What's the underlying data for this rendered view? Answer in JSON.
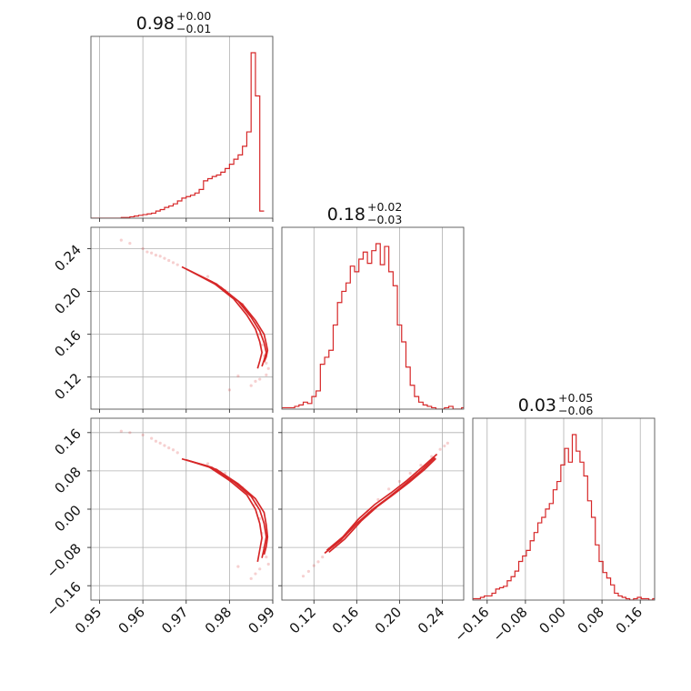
{
  "chart_data": {
    "type": "corner",
    "color": "#d62728",
    "grid": true,
    "parameters": [
      {
        "title": {
          "median": "0.98",
          "plus": "+0.00",
          "minus": "−0.01"
        },
        "range": [
          0.948,
          0.99
        ],
        "ticks": [
          0.95,
          0.96,
          0.97,
          0.98,
          0.99
        ],
        "tick_labels": [
          "0.95",
          "0.96",
          "0.97",
          "0.98",
          "0.99"
        ],
        "hist": {
          "edges_start": 0.948,
          "bin_width": 0.001,
          "counts": [
            0,
            0,
            0,
            0,
            0,
            0,
            0,
            1,
            1,
            2,
            3,
            4,
            5,
            6,
            7,
            10,
            12,
            15,
            17,
            20,
            24,
            28,
            30,
            32,
            35,
            40,
            52,
            55,
            58,
            60,
            64,
            69,
            75,
            82,
            88,
            100,
            120,
            230,
            170,
            10
          ]
        }
      },
      {
        "title": {
          "median": "0.18",
          "plus": "+0.02",
          "minus": "−0.03"
        },
        "range": [
          0.09,
          0.26
        ],
        "ticks": [
          0.12,
          0.16,
          0.2,
          0.24
        ],
        "tick_labels": [
          "0.12",
          "0.16",
          "0.20",
          "0.24"
        ],
        "hist": {
          "edges_start": 0.09,
          "bin_width": 0.004,
          "counts": [
            1,
            1,
            1,
            2,
            3,
            5,
            4,
            9,
            13,
            32,
            37,
            42,
            60,
            76,
            84,
            90,
            102,
            98,
            107,
            112,
            104,
            113,
            118,
            103,
            116,
            98,
            88,
            60,
            48,
            30,
            17,
            9,
            5,
            3,
            2,
            1,
            0,
            0,
            1,
            2,
            0,
            0,
            1
          ]
        }
      },
      {
        "title": {
          "median": "0.03",
          "plus": "+0.05",
          "minus": "−0.06"
        },
        "range": [
          -0.19,
          0.19
        ],
        "ticks": [
          -0.16,
          -0.08,
          0.0,
          0.08,
          0.16
        ],
        "tick_labels": [
          "−0.16",
          "−0.08",
          "0.00",
          "0.08",
          "0.16"
        ],
        "hist": {
          "edges_start": -0.19,
          "bin_width": 0.008,
          "counts": [
            1,
            1,
            2,
            3,
            3,
            5,
            8,
            9,
            10,
            14,
            17,
            21,
            28,
            32,
            36,
            43,
            49,
            56,
            60,
            66,
            70,
            80,
            86,
            98,
            110,
            100,
            120,
            108,
            100,
            90,
            72,
            60,
            40,
            28,
            20,
            16,
            11,
            5,
            3,
            2,
            1,
            0,
            1,
            2,
            1,
            1,
            0,
            1
          ]
        }
      }
    ],
    "pairs": [
      {
        "x_param": 0,
        "y_param": 1,
        "contours": [
          {
            "x": [
              0.969,
              0.976,
              0.981,
              0.984,
              0.986,
              0.987,
              0.9875,
              0.987,
              0.9865
            ],
            "y": [
              0.223,
              0.209,
              0.193,
              0.178,
              0.165,
              0.153,
              0.143,
              0.135,
              0.128
            ]
          },
          {
            "x": [
              0.97,
              0.977,
              0.982,
              0.985,
              0.987,
              0.988,
              0.9885,
              0.988,
              0.9875
            ],
            "y": [
              0.221,
              0.207,
              0.191,
              0.176,
              0.163,
              0.152,
              0.143,
              0.136,
              0.13
            ]
          },
          {
            "x": [
              0.971,
              0.978,
              0.983,
              0.986,
              0.988,
              0.9885,
              0.9888,
              0.9885,
              0.988
            ],
            "y": [
              0.219,
              0.204,
              0.188,
              0.173,
              0.16,
              0.151,
              0.145,
              0.139,
              0.134
            ]
          }
        ],
        "scatter": {
          "x": [
            0.955,
            0.957,
            0.96,
            0.961,
            0.962,
            0.963,
            0.964,
            0.965,
            0.966,
            0.967,
            0.968,
            0.975,
            0.979,
            0.983,
            0.986,
            0.987,
            0.9875,
            0.988,
            0.9885,
            0.989,
            0.9885,
            0.987,
            0.986,
            0.985,
            0.98,
            0.982
          ],
          "y": [
            0.248,
            0.245,
            0.24,
            0.237,
            0.236,
            0.234,
            0.233,
            0.231,
            0.229,
            0.227,
            0.225,
            0.214,
            0.201,
            0.188,
            0.171,
            0.16,
            0.15,
            0.14,
            0.133,
            0.128,
            0.122,
            0.118,
            0.116,
            0.112,
            0.108,
            0.121
          ]
        }
      },
      {
        "x_param": 0,
        "y_param": 2,
        "contours": [
          {
            "x": [
              0.969,
              0.975,
              0.98,
              0.984,
              0.986,
              0.987,
              0.9875,
              0.987,
              0.9865
            ],
            "y": [
              0.105,
              0.09,
              0.06,
              0.03,
              0.0,
              -0.03,
              -0.06,
              -0.085,
              -0.11
            ]
          },
          {
            "x": [
              0.97,
              0.976,
              0.981,
              0.985,
              0.987,
              0.988,
              0.9885,
              0.988,
              0.9875
            ],
            "y": [
              0.103,
              0.087,
              0.057,
              0.027,
              -0.002,
              -0.03,
              -0.058,
              -0.082,
              -0.102
            ]
          },
          {
            "x": [
              0.971,
              0.977,
              0.982,
              0.986,
              0.988,
              0.9885,
              0.9888,
              0.9885,
              0.988
            ],
            "y": [
              0.1,
              0.083,
              0.053,
              0.022,
              -0.007,
              -0.033,
              -0.058,
              -0.078,
              -0.095
            ]
          }
        ],
        "scatter": {
          "x": [
            0.955,
            0.957,
            0.96,
            0.962,
            0.963,
            0.964,
            0.965,
            0.966,
            0.967,
            0.968,
            0.975,
            0.979,
            0.983,
            0.986,
            0.987,
            0.9875,
            0.988,
            0.9885,
            0.989,
            0.987,
            0.986,
            0.985,
            0.982
          ],
          "y": [
            0.163,
            0.16,
            0.155,
            0.148,
            0.142,
            0.138,
            0.133,
            0.128,
            0.124,
            0.118,
            0.095,
            0.075,
            0.045,
            0.01,
            -0.02,
            -0.05,
            -0.08,
            -0.1,
            -0.115,
            -0.125,
            -0.135,
            -0.145,
            -0.12
          ]
        }
      },
      {
        "x_param": 1,
        "y_param": 2,
        "contours": [
          {
            "x": [
              0.13,
              0.145,
              0.16,
              0.175,
              0.19,
              0.205,
              0.22,
              0.233
            ],
            "y": [
              -0.092,
              -0.065,
              -0.03,
              0.0,
              0.025,
              0.052,
              0.08,
              0.108
            ]
          },
          {
            "x": [
              0.132,
              0.147,
              0.162,
              0.177,
              0.192,
              0.207,
              0.222,
              0.235
            ],
            "y": [
              -0.086,
              -0.058,
              -0.02,
              0.01,
              0.034,
              0.06,
              0.089,
              0.115
            ]
          },
          {
            "x": [
              0.134,
              0.149,
              0.164,
              0.179,
              0.194,
              0.209,
              0.224,
              0.234
            ],
            "y": [
              -0.09,
              -0.062,
              -0.025,
              0.005,
              0.03,
              0.056,
              0.084,
              0.106
            ]
          }
        ],
        "scatter": {
          "x": [
            0.11,
            0.115,
            0.12,
            0.124,
            0.128,
            0.14,
            0.15,
            0.16,
            0.17,
            0.18,
            0.19,
            0.2,
            0.21,
            0.22,
            0.23,
            0.238,
            0.242,
            0.245
          ],
          "y": [
            -0.14,
            -0.13,
            -0.118,
            -0.11,
            -0.1,
            -0.075,
            -0.055,
            -0.025,
            -0.005,
            0.02,
            0.042,
            0.058,
            0.075,
            0.092,
            0.11,
            0.125,
            0.132,
            0.138
          ]
        }
      }
    ]
  }
}
